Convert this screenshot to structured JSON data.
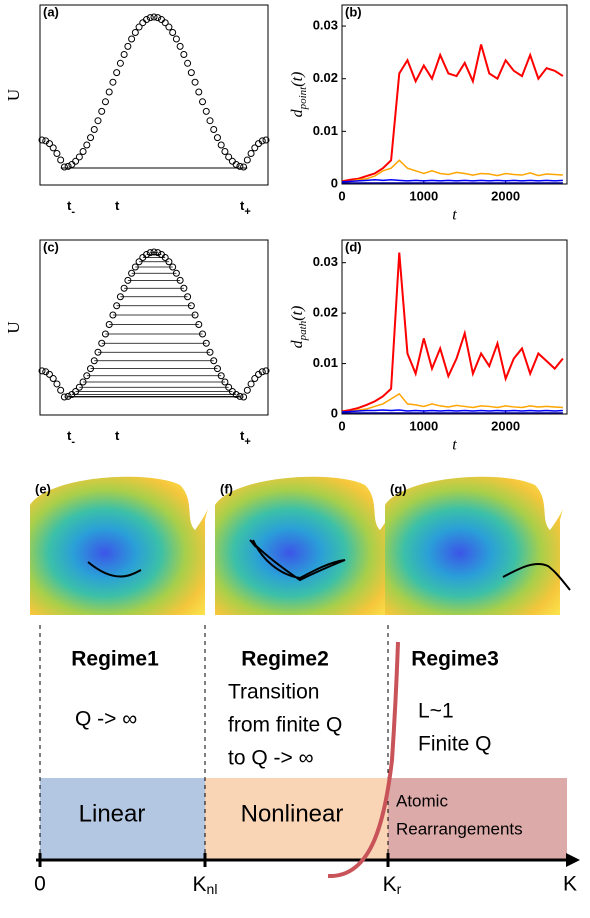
{
  "chart_data": [
    {
      "type": "line",
      "panel": "(b)",
      "ylabel": {
        "main": "d",
        "sub": "point",
        "tail": "(t)"
      },
      "xlabel": "t",
      "xlim": [
        0,
        2750
      ],
      "xticks": [
        0,
        1000,
        2000
      ],
      "ylim": [
        0,
        0.034
      ],
      "yticks": [
        0,
        0.01,
        0.02,
        0.03
      ],
      "x": [
        0,
        100,
        200,
        300,
        400,
        500,
        600,
        700,
        800,
        900,
        1000,
        1100,
        1200,
        1300,
        1400,
        1500,
        1600,
        1700,
        1800,
        1900,
        2000,
        2100,
        2200,
        2300,
        2400,
        2500,
        2600,
        2700
      ],
      "series": [
        {
          "color": "#ff0000",
          "values": [
            0.0005,
            0.0008,
            0.001,
            0.0015,
            0.002,
            0.003,
            0.0045,
            0.021,
            0.0235,
            0.0195,
            0.0225,
            0.02,
            0.0245,
            0.021,
            0.0205,
            0.023,
            0.0195,
            0.0265,
            0.021,
            0.02,
            0.0235,
            0.0215,
            0.0205,
            0.0245,
            0.02,
            0.022,
            0.0215,
            0.0205
          ]
        },
        {
          "color": "#ffa500",
          "values": [
            0.0003,
            0.0005,
            0.0008,
            0.001,
            0.0015,
            0.0025,
            0.003,
            0.0045,
            0.003,
            0.0025,
            0.002,
            0.0025,
            0.002,
            0.0018,
            0.0022,
            0.002,
            0.0017,
            0.002,
            0.0019,
            0.0016,
            0.002,
            0.0018,
            0.0017,
            0.0021,
            0.0016,
            0.0019,
            0.0018,
            0.0017
          ]
        },
        {
          "color": "#0000ff",
          "values": [
            0.0004,
            0.0005,
            0.0006,
            0.0007,
            0.0008,
            0.0007,
            0.0008,
            0.0007,
            0.0006,
            0.0007,
            0.0006,
            0.0007,
            0.0006,
            0.0007,
            0.0006,
            0.0007,
            0.0006,
            0.0007,
            0.0006,
            0.0007,
            0.0006,
            0.0007,
            0.0006,
            0.0007,
            0.0006,
            0.0007,
            0.0006,
            0.0007
          ]
        },
        {
          "color": "#00008b",
          "values": [
            0.0002,
            0.0002,
            0.0002,
            0.0002,
            0.0002,
            0.0002,
            0.0002,
            0.0002,
            0.0002,
            0.0002,
            0.0002,
            0.0002,
            0.0002,
            0.0002,
            0.0002,
            0.0002,
            0.0002,
            0.0002,
            0.0002,
            0.0002,
            0.0002,
            0.0002,
            0.0002,
            0.0002,
            0.0002,
            0.0002,
            0.0002,
            0.0002
          ]
        }
      ]
    },
    {
      "type": "line",
      "panel": "(d)",
      "ylabel": {
        "main": "d",
        "sub": "path",
        "tail": "(t)"
      },
      "xlabel": "t",
      "xlim": [
        0,
        2750
      ],
      "xticks": [
        0,
        1000,
        2000
      ],
      "ylim": [
        0,
        0.0345
      ],
      "yticks": [
        0,
        0.01,
        0.02,
        0.03
      ],
      "x": [
        0,
        100,
        200,
        300,
        400,
        500,
        600,
        700,
        800,
        900,
        1000,
        1100,
        1200,
        1300,
        1400,
        1500,
        1600,
        1700,
        1800,
        1900,
        2000,
        2100,
        2200,
        2300,
        2400,
        2500,
        2600,
        2700
      ],
      "series": [
        {
          "color": "#ff0000",
          "values": [
            0.0005,
            0.0008,
            0.0012,
            0.0018,
            0.0025,
            0.0035,
            0.005,
            0.032,
            0.012,
            0.008,
            0.015,
            0.009,
            0.013,
            0.0075,
            0.011,
            0.016,
            0.008,
            0.012,
            0.0095,
            0.014,
            0.007,
            0.011,
            0.013,
            0.008,
            0.012,
            0.0105,
            0.009,
            0.011
          ]
        },
        {
          "color": "#ffa500",
          "values": [
            0.0003,
            0.0005,
            0.0008,
            0.001,
            0.0015,
            0.002,
            0.003,
            0.004,
            0.002,
            0.0018,
            0.0015,
            0.002,
            0.0016,
            0.0014,
            0.0017,
            0.0015,
            0.0013,
            0.0016,
            0.0015,
            0.0013,
            0.0016,
            0.0014,
            0.0013,
            0.0016,
            0.0014,
            0.0015,
            0.0014,
            0.0013
          ]
        },
        {
          "color": "#0000ff",
          "values": [
            0.0004,
            0.0005,
            0.0006,
            0.0007,
            0.0007,
            0.0008,
            0.0007,
            0.0008,
            0.0006,
            0.0007,
            0.0006,
            0.0007,
            0.0006,
            0.0007,
            0.0006,
            0.0007,
            0.0006,
            0.0007,
            0.0006,
            0.0007,
            0.0006,
            0.0007,
            0.0006,
            0.0007,
            0.0006,
            0.0007,
            0.0006,
            0.0007
          ]
        },
        {
          "color": "#00008b",
          "values": [
            0.0002,
            0.0002,
            0.0002,
            0.0002,
            0.0002,
            0.0002,
            0.0002,
            0.0002,
            0.0002,
            0.0002,
            0.0002,
            0.0002,
            0.0002,
            0.0002,
            0.0002,
            0.0002,
            0.0002,
            0.0002,
            0.0002,
            0.0002,
            0.0002,
            0.0002,
            0.0002,
            0.0002,
            0.0002,
            0.0002,
            0.0002,
            0.0002
          ]
        }
      ]
    }
  ],
  "schematics": [
    {
      "panel": "(a)",
      "ylabel": "U",
      "ticks": [
        {
          "main": "t",
          "sub": "-"
        },
        {
          "main": "t"
        },
        {
          "main": "t",
          "sub": "+"
        }
      ]
    },
    {
      "panel": "(c)",
      "ylabel": "U",
      "ticks": [
        {
          "main": "t",
          "sub": "-"
        },
        {
          "main": "t"
        },
        {
          "main": "t",
          "sub": "+"
        }
      ]
    }
  ],
  "landscapes": [
    "(e)",
    "(f)",
    "(g)"
  ],
  "regimes": [
    {
      "title": "Regime1",
      "text": [
        "Q -> ∞"
      ],
      "band": "Linear"
    },
    {
      "title": "Regime2",
      "text": [
        "Transition",
        "from finite Q",
        "to Q -> ∞"
      ],
      "band": "Nonlinear"
    },
    {
      "title": "Regime3",
      "text": [
        "L~1",
        "Finite Q"
      ],
      "band": [
        "Atomic",
        "Rearrangements"
      ]
    }
  ],
  "k_axis": {
    "origin": "0",
    "nl": {
      "main": "K",
      "sub": "nl"
    },
    "r": {
      "main": "K",
      "sub": "r"
    },
    "end": "K"
  }
}
